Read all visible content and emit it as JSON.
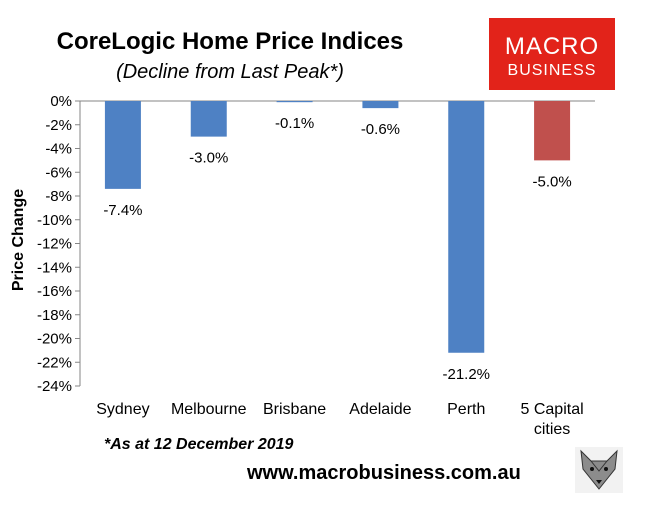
{
  "chart_data": {
    "type": "bar",
    "title": "CoreLogic Home Price Indices",
    "subtitle": "(Decline from Last Peak*)",
    "ylabel": "Price Change",
    "xlabel": "",
    "categories": [
      "Sydney",
      "Melbourne",
      "Brisbane",
      "Adelaide",
      "Perth",
      "5 Capital cities"
    ],
    "values": [
      -7.4,
      -3.0,
      -0.1,
      -0.6,
      -21.2,
      -5.0
    ],
    "data_labels": [
      "-7.4%",
      "-3.0%",
      "-0.1%",
      "-0.6%",
      "-21.2%",
      "-5.0%"
    ],
    "ylim": [
      -24,
      0
    ],
    "yticks": [
      "0%",
      "-2%",
      "-4%",
      "-6%",
      "-8%",
      "-10%",
      "-12%",
      "-14%",
      "-16%",
      "-18%",
      "-20%",
      "-22%",
      "-24%"
    ],
    "bar_colors": [
      "#4e81c4",
      "#4e81c4",
      "#4e81c4",
      "#4e81c4",
      "#4e81c4",
      "#c0504d"
    ],
    "grid": false,
    "legend": "none"
  },
  "logo": {
    "line1": "MACRO",
    "line2": "BUSINESS",
    "color": "#e2231a"
  },
  "footnote": "*As at 12 December 2019",
  "website": "www.macrobusiness.com.au",
  "fox_icon": "fox-head-icon"
}
